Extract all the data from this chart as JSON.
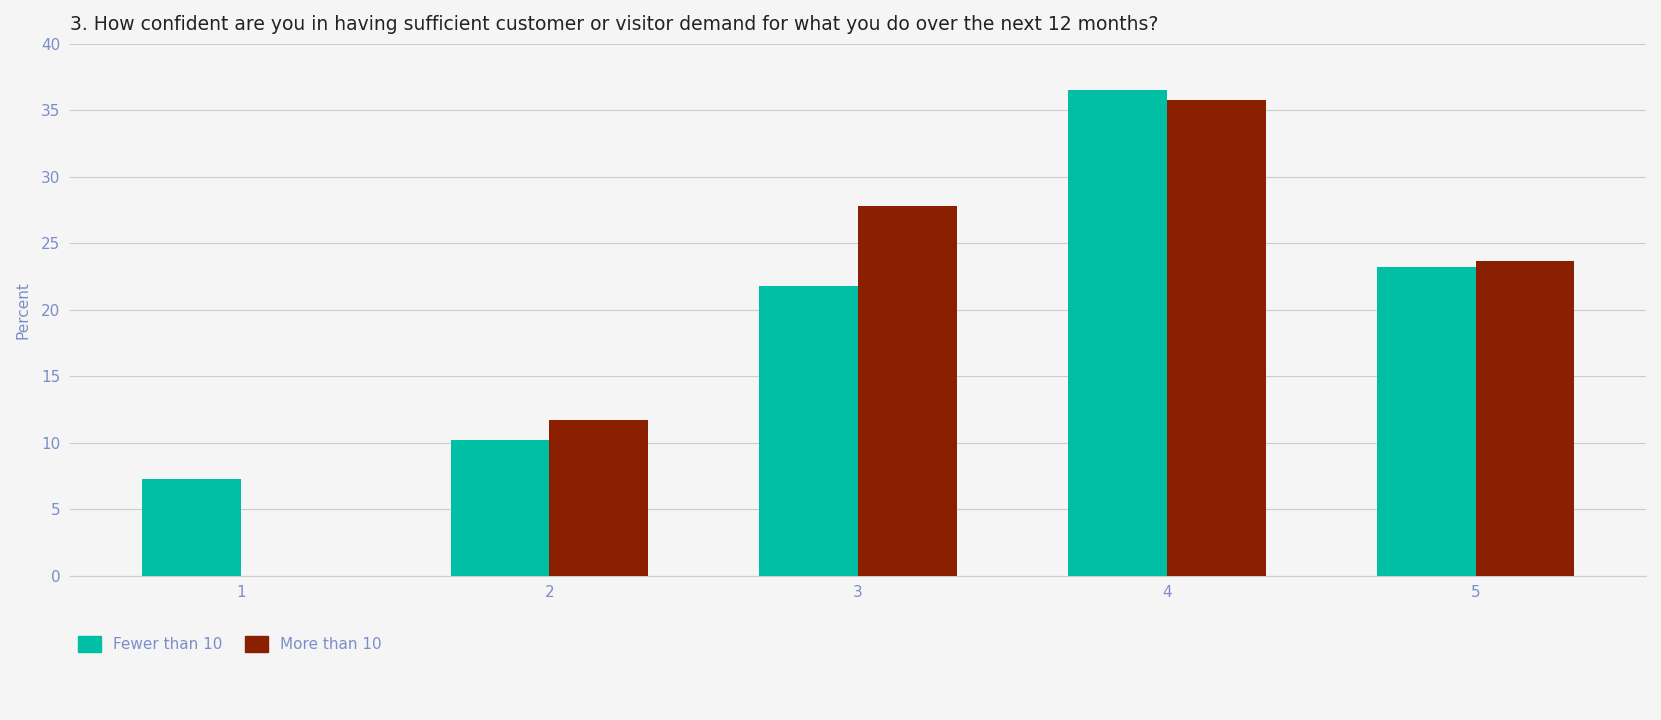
{
  "title": "3. How confident are you in having sufficient customer or visitor demand for what you do over the next 12 months?",
  "categories": [
    "1",
    "2",
    "3",
    "4",
    "5"
  ],
  "fewer_than_10": [
    7.3,
    10.2,
    21.8,
    36.5,
    23.2
  ],
  "more_than_10": [
    0.0,
    11.7,
    27.8,
    35.8,
    23.7
  ],
  "color_fewer": "#00BFA5",
  "color_more": "#8B2000",
  "ylabel": "Percent",
  "ylim": [
    0,
    40
  ],
  "yticks": [
    0,
    5,
    10,
    15,
    20,
    25,
    30,
    35,
    40
  ],
  "legend_fewer": "Fewer than 10",
  "legend_more": "More than 10",
  "bar_width": 0.32,
  "title_fontsize": 13.5,
  "axis_fontsize": 11,
  "tick_fontsize": 11,
  "label_color": "#7B8EC8",
  "background_color": "#F5F5F5",
  "grid_color": "#CCCCCC",
  "title_color": "#222222"
}
